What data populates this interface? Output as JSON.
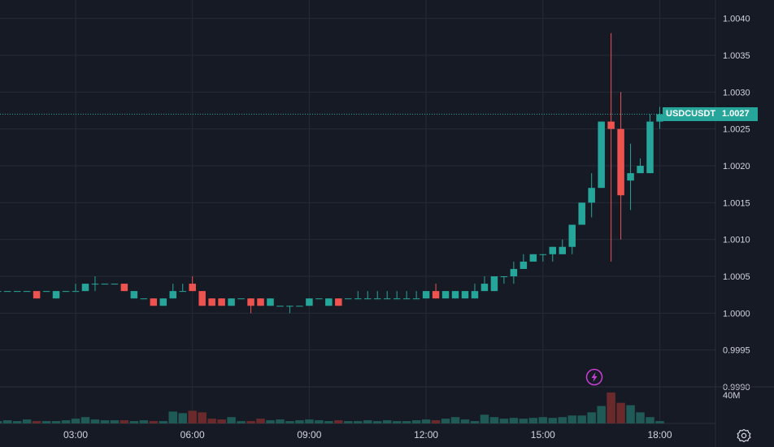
{
  "symbol": "USDCUSDT",
  "last_price": "1.0027",
  "volume_axis_label": "40M",
  "icons": {
    "settings": "gear-icon",
    "event": "lightning-icon"
  },
  "colors": {
    "background": "#161a25",
    "up": "#26a69a",
    "down": "#ef5350",
    "grid": "#252a36",
    "text": "#d1d4dc",
    "bolt": "#c73fd3"
  },
  "chart_data": {
    "type": "candlestick",
    "x_tick_labels": [
      "03:00",
      "06:00",
      "09:00",
      "12:00",
      "15:00",
      "18:00"
    ],
    "x_ticks_hours": [
      3,
      6,
      9,
      12,
      15,
      18
    ],
    "y_tick_labels": [
      "1.0040",
      "1.0035",
      "1.0030",
      "1.0025",
      "1.0020",
      "1.0015",
      "1.0010",
      "1.0005",
      "1.0000",
      "0.9995",
      "0.9990"
    ],
    "ylim": [
      0.999,
      1.00425
    ],
    "bar_interval_hours": 0.25,
    "first_bar_hour": 1.0,
    "last_price_line": 1.0027,
    "candles": [
      [
        1.0003,
        1.0003,
        1.0003,
        1.0003
      ],
      [
        1.0003,
        1.0003,
        1.0003,
        1.0003
      ],
      [
        1.0003,
        1.0003,
        1.0003,
        1.0003
      ],
      [
        1.0003,
        1.0003,
        1.0003,
        1.0003
      ],
      [
        1.0003,
        1.0003,
        1.0002,
        1.0002
      ],
      [
        1.0003,
        1.0003,
        1.0003,
        1.0003
      ],
      [
        1.0002,
        1.0003,
        1.0002,
        1.0003
      ],
      [
        1.0003,
        1.0003,
        1.0003,
        1.0003
      ],
      [
        1.0003,
        1.0004,
        1.0003,
        1.0003
      ],
      [
        1.0003,
        1.0004,
        1.0003,
        1.0004
      ],
      [
        1.0004,
        1.0005,
        1.0003,
        1.0004
      ],
      [
        1.0004,
        1.0004,
        1.0004,
        1.0004
      ],
      [
        1.0004,
        1.0004,
        1.0004,
        1.0004
      ],
      [
        1.0004,
        1.0004,
        1.0003,
        1.0003
      ],
      [
        1.0002,
        1.0003,
        1.0002,
        1.0003
      ],
      [
        1.0002,
        1.0002,
        1.0002,
        1.0002
      ],
      [
        1.0002,
        1.0002,
        1.0001,
        1.0001
      ],
      [
        1.0001,
        1.0002,
        1.0001,
        1.0002
      ],
      [
        1.0002,
        1.0004,
        1.0002,
        1.0003
      ],
      [
        1.0003,
        1.0004,
        1.0003,
        1.0003
      ],
      [
        1.0004,
        1.0005,
        1.0003,
        1.0003
      ],
      [
        1.0003,
        1.0003,
        1.0001,
        1.0001
      ],
      [
        1.0002,
        1.0002,
        1.0001,
        1.0001
      ],
      [
        1.0002,
        1.0002,
        1.0001,
        1.0001
      ],
      [
        1.0001,
        1.0002,
        1.0001,
        1.0002
      ],
      [
        1.0002,
        1.0002,
        1.0002,
        1.0002
      ],
      [
        1.0002,
        1.0002,
        1.0,
        1.0001
      ],
      [
        1.0002,
        1.0002,
        1.0001,
        1.0001
      ],
      [
        1.0001,
        1.0002,
        1.0001,
        1.0002
      ],
      [
        1.0001,
        1.0001,
        1.0001,
        1.0001
      ],
      [
        1.0001,
        1.0001,
        1.0,
        1.0001
      ],
      [
        1.0001,
        1.0001,
        1.0001,
        1.0001
      ],
      [
        1.0001,
        1.0002,
        1.0001,
        1.0002
      ],
      [
        1.0002,
        1.0002,
        1.0002,
        1.0002
      ],
      [
        1.0001,
        1.0002,
        1.0001,
        1.0002
      ],
      [
        1.0002,
        1.0002,
        1.0001,
        1.0001
      ],
      [
        1.0002,
        1.0002,
        1.0002,
        1.0002
      ],
      [
        1.0002,
        1.0003,
        1.0002,
        1.0002
      ],
      [
        1.0002,
        1.0003,
        1.0002,
        1.0002
      ],
      [
        1.0002,
        1.0003,
        1.0002,
        1.0002
      ],
      [
        1.0002,
        1.0003,
        1.0002,
        1.0002
      ],
      [
        1.0002,
        1.0003,
        1.0002,
        1.0002
      ],
      [
        1.0002,
        1.0003,
        1.0002,
        1.0002
      ],
      [
        1.0002,
        1.0003,
        1.0002,
        1.0002
      ],
      [
        1.0002,
        1.0003,
        1.0002,
        1.0003
      ],
      [
        1.0003,
        1.0004,
        1.0002,
        1.0002
      ],
      [
        1.0002,
        1.0003,
        1.0002,
        1.0003
      ],
      [
        1.0002,
        1.0003,
        1.0002,
        1.0003
      ],
      [
        1.0002,
        1.0003,
        1.0002,
        1.0003
      ],
      [
        1.0002,
        1.0004,
        1.0002,
        1.0003
      ],
      [
        1.0003,
        1.0005,
        1.0003,
        1.0004
      ],
      [
        1.0003,
        1.0005,
        1.0003,
        1.0005
      ],
      [
        1.0005,
        1.0005,
        1.0004,
        1.0005
      ],
      [
        1.0005,
        1.0007,
        1.0004,
        1.0006
      ],
      [
        1.0006,
        1.0008,
        1.0006,
        1.0007
      ],
      [
        1.0007,
        1.0008,
        1.0007,
        1.0008
      ],
      [
        1.0008,
        1.0008,
        1.0007,
        1.0008
      ],
      [
        1.0008,
        1.0009,
        1.0007,
        1.0009
      ],
      [
        1.0008,
        1.001,
        1.0008,
        1.0009
      ],
      [
        1.0009,
        1.0012,
        1.0008,
        1.0012
      ],
      [
        1.0012,
        1.0015,
        1.0012,
        1.0015
      ],
      [
        1.0015,
        1.0019,
        1.0013,
        1.0017
      ],
      [
        1.0017,
        1.0026,
        1.0017,
        1.0026
      ],
      [
        1.0026,
        1.0038,
        1.0007,
        1.0025
      ],
      [
        1.0025,
        1.003,
        1.001,
        1.0016
      ],
      [
        1.0018,
        1.0023,
        1.0014,
        1.0019
      ],
      [
        1.0019,
        1.0021,
        1.0019,
        1.002
      ],
      [
        1.0019,
        1.0027,
        1.0019,
        1.0026
      ],
      [
        1.0026,
        1.0028,
        1.0025,
        1.0027
      ]
    ],
    "volumes_m": [
      3,
      4,
      3,
      5,
      3,
      3,
      3,
      4,
      6,
      8,
      5,
      4,
      4,
      4,
      3,
      4,
      3,
      3,
      15,
      13,
      16,
      14,
      6,
      5,
      8,
      3,
      3,
      6,
      4,
      5,
      3,
      4,
      5,
      4,
      3,
      4,
      3,
      3,
      4,
      3,
      4,
      3,
      3,
      4,
      5,
      4,
      6,
      8,
      5,
      3,
      11,
      8,
      6,
      7,
      6,
      7,
      8,
      7,
      8,
      10,
      10,
      14,
      22,
      39,
      26,
      23,
      14,
      8,
      3
    ],
    "volume_ylim_m": [
      0,
      40
    ]
  }
}
